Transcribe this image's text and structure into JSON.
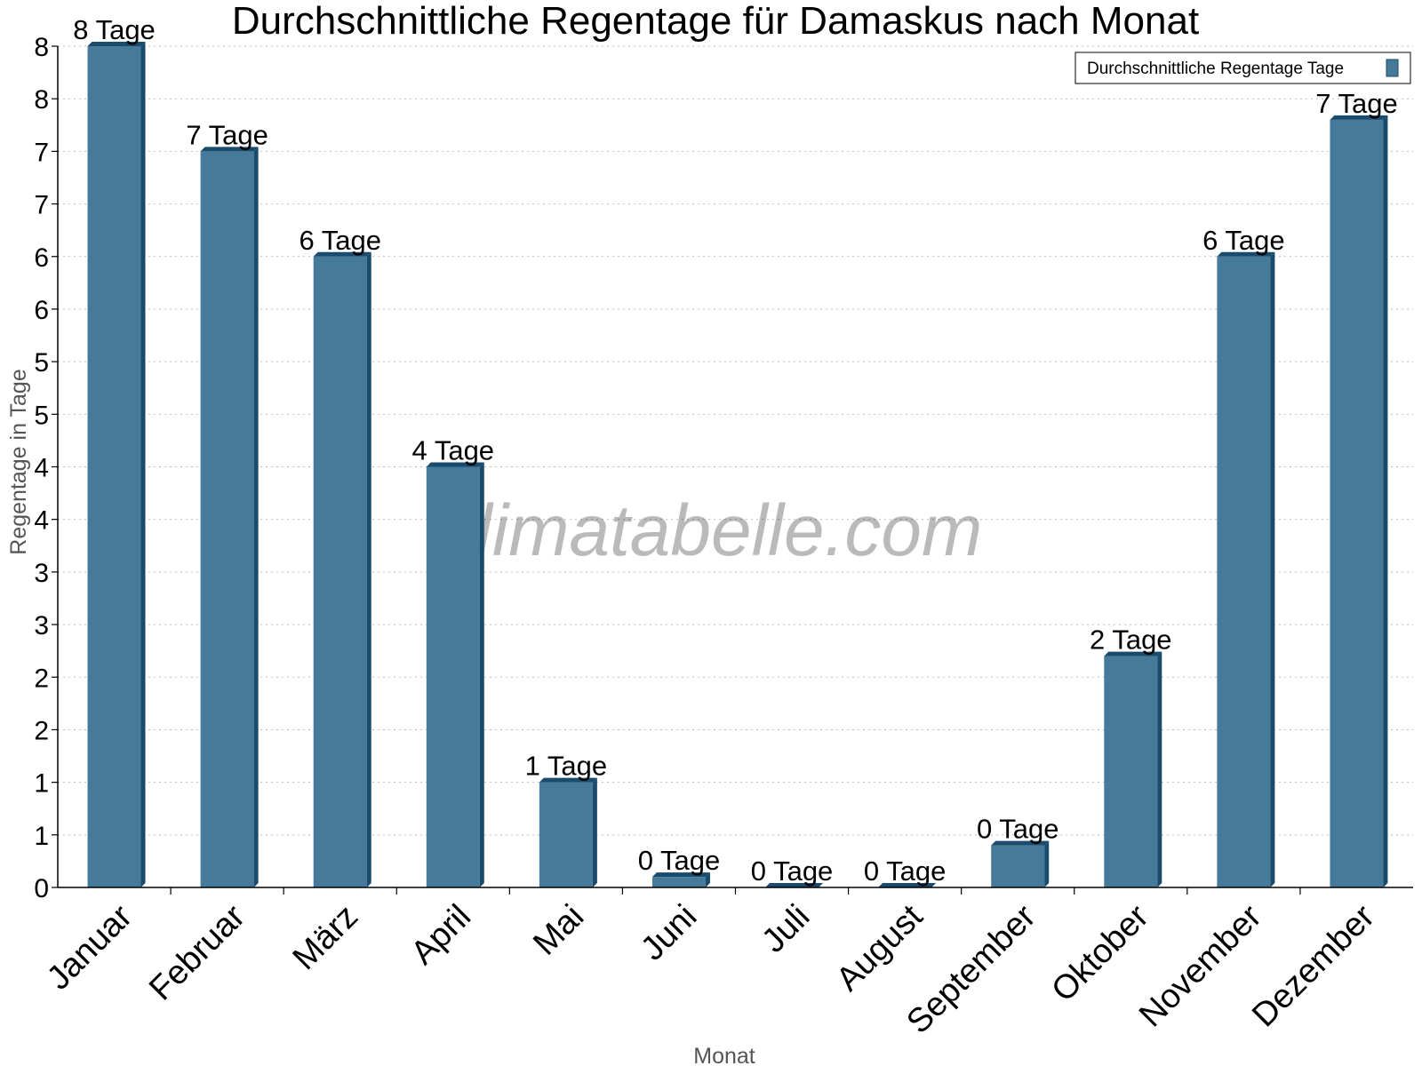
{
  "chart_data": {
    "type": "bar",
    "title": "Durchschnittliche Regentage für Damaskus nach Monat",
    "xlabel": "Monat",
    "ylabel": "Regentage in Tage",
    "categories": [
      "Januar",
      "Februar",
      "März",
      "April",
      "Mai",
      "Juni",
      "Juli",
      "August",
      "September",
      "Oktober",
      "November",
      "Dezember"
    ],
    "series": [
      {
        "name": "Durchschnittliche Regentage Tage",
        "values": [
          8,
          7,
          6,
          4,
          1,
          0.1,
          0,
          0,
          0.4,
          2.2,
          6,
          7.3
        ],
        "labels": [
          "8 Tage",
          "7 Tage",
          "6 Tage",
          "4 Tage",
          "1 Tage",
          "0 Tage",
          "0 Tage",
          "0 Tage",
          "0 Tage",
          "2 Tage",
          "6 Tage",
          "7 Tage"
        ]
      }
    ],
    "ylim": [
      0,
      8
    ],
    "yticks": [
      0,
      0.5,
      1,
      1.5,
      2,
      2.5,
      3,
      3.5,
      4,
      4.5,
      5,
      5.5,
      6,
      6.5,
      7,
      7.5,
      8
    ],
    "ytick_labels": [
      "0",
      "1",
      "1",
      "2",
      "2",
      "3",
      "3",
      "4",
      "4",
      "5",
      "5",
      "6",
      "6",
      "7",
      "7",
      "8",
      "8"
    ],
    "grid": true,
    "legend_position": "top-right",
    "bar_color": "#467a9b",
    "bar_side_color": "#1a4a6c",
    "watermark": "klimatabelle.com"
  }
}
